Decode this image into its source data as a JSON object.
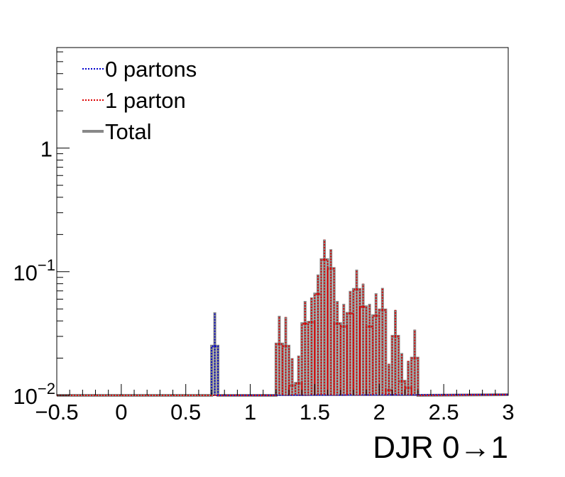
{
  "chart_data": {
    "type": "histogram",
    "title": "",
    "xlabel": "DJR 0→1",
    "ylabel": "",
    "xlim": [
      -0.5,
      3.0
    ],
    "ylim": [
      0.01,
      6.5
    ],
    "yscale": "log",
    "grid": false,
    "legend_position": "top-left",
    "x_ticks": [
      -0.5,
      0,
      0.5,
      1,
      1.5,
      2,
      2.5,
      3
    ],
    "x_tick_labels": [
      "−0.5",
      "0",
      "0.5",
      "1",
      "1.5",
      "2",
      "2.5",
      "3"
    ],
    "y_ticks": [
      {
        "value": 0.01,
        "base": "10",
        "exp": "−2"
      },
      {
        "value": 0.1,
        "base": "10",
        "exp": "−1"
      },
      {
        "value": 1,
        "base": "1",
        "exp": ""
      }
    ],
    "bin_width": 0.05,
    "series": [
      {
        "name": "0 partons",
        "color": "#0000cc",
        "style": "dotted",
        "bins": [
          {
            "x0": 0.7,
            "y": 0.025,
            "err_hi": 0.047
          }
        ]
      },
      {
        "name": "1 parton",
        "color": "#dd0000",
        "style": "dotted",
        "bins": [
          {
            "x0": 1.2,
            "y": 0.026,
            "err_hi": 0.044
          },
          {
            "x0": 1.25,
            "y": 0.025,
            "err_hi": 0.043
          },
          {
            "x0": 1.3,
            "y": 0.012,
            "err_hi": 0.02
          },
          {
            "x0": 1.35,
            "y": 0.0125,
            "err_hi": 0.021
          },
          {
            "x0": 1.4,
            "y": 0.038,
            "err_hi": 0.058
          },
          {
            "x0": 1.45,
            "y": 0.039,
            "err_hi": 0.062
          },
          {
            "x0": 1.5,
            "y": 0.066,
            "err_hi": 0.095
          },
          {
            "x0": 1.55,
            "y": 0.125,
            "err_hi": 0.182
          },
          {
            "x0": 1.6,
            "y": 0.106,
            "err_hi": 0.152
          },
          {
            "x0": 1.65,
            "y": 0.038,
            "err_hi": 0.058
          },
          {
            "x0": 1.7,
            "y": 0.036,
            "err_hi": 0.055
          },
          {
            "x0": 1.75,
            "y": 0.046,
            "err_hi": 0.07
          },
          {
            "x0": 1.8,
            "y": 0.072,
            "err_hi": 0.104
          },
          {
            "x0": 1.85,
            "y": 0.052,
            "err_hi": 0.08
          },
          {
            "x0": 1.9,
            "y": 0.036,
            "err_hi": 0.055
          },
          {
            "x0": 1.95,
            "y": 0.044,
            "err_hi": 0.067
          },
          {
            "x0": 2.0,
            "y": 0.049,
            "err_hi": 0.074
          },
          {
            "x0": 2.05,
            "y": 0.011,
            "err_hi": 0.018
          },
          {
            "x0": 2.1,
            "y": 0.03,
            "err_hi": 0.049
          },
          {
            "x0": 2.15,
            "y": 0.013,
            "err_hi": 0.022
          },
          {
            "x0": 2.2,
            "y": 0.0115,
            "err_hi": 0.019
          },
          {
            "x0": 2.25,
            "y": 0.02,
            "err_hi": 0.034
          }
        ]
      },
      {
        "name": "Total",
        "color": "#888888",
        "style": "solid"
      }
    ]
  }
}
